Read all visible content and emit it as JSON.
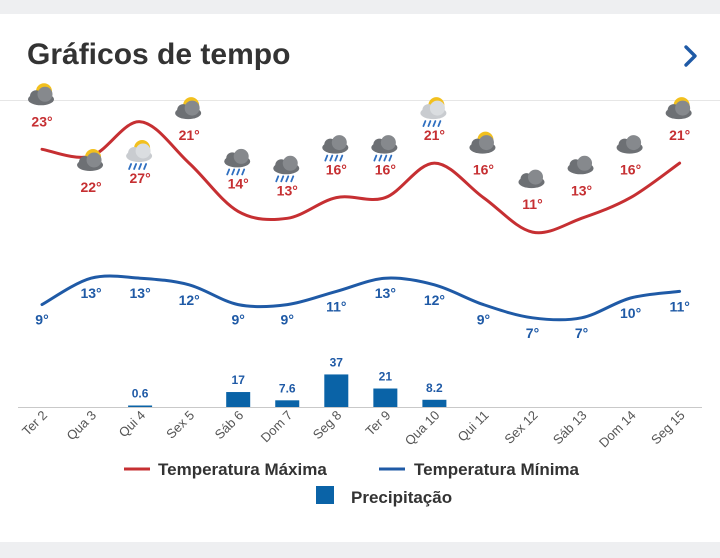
{
  "header": {
    "title": "Gráficos de tempo",
    "chevron_icon": "chevron-right-icon"
  },
  "colors": {
    "max": "#c62f32",
    "min": "#1f5aa6",
    "precip": "#0a63a7",
    "title": "#333333"
  },
  "chart_data": {
    "type": "line",
    "categories": [
      "Ter 2",
      "Qua 3",
      "Qui 4",
      "Sex 5",
      "Sáb 6",
      "Dom 7",
      "Seg 8",
      "Ter 9",
      "Qua 10",
      "Qui 11",
      "Sex 12",
      "Sáb 13",
      "Dom 14",
      "Seg 15"
    ],
    "icons": [
      "partly-cloudy-icon",
      "partly-cloudy-icon",
      "sun-cloud-rain-icon",
      "partly-cloudy-icon",
      "rain-cloud-icon",
      "rain-cloud-icon",
      "rain-cloud-icon",
      "rain-cloud-icon",
      "sun-cloud-rain-icon",
      "partly-cloudy-icon",
      "cloud-icon",
      "cloud-icon",
      "cloud-icon",
      "partly-cloudy-icon"
    ],
    "series": [
      {
        "name": "Temperatura Máxima",
        "values": [
          23,
          22,
          27,
          21,
          14,
          13,
          16,
          16,
          21,
          16,
          11,
          13,
          16,
          21
        ],
        "labels": [
          "23°",
          "22°",
          "27°",
          "21°",
          "14°",
          "13°",
          "16°",
          "16°",
          "21°",
          "16°",
          "11°",
          "13°",
          "16°",
          "21°"
        ]
      },
      {
        "name": "Temperatura Mínima",
        "values": [
          9,
          13,
          13,
          12,
          9,
          9,
          11,
          13,
          12,
          9,
          7,
          7,
          10,
          11
        ],
        "labels": [
          "9°",
          "13°",
          "13°",
          "12°",
          "9°",
          "9°",
          "11°",
          "13°",
          "12°",
          "9°",
          "7°",
          "7°",
          "10°",
          "11°"
        ]
      }
    ],
    "precipitation": {
      "name": "Precipitação",
      "values": [
        0,
        0,
        0.6,
        0,
        17,
        7.6,
        37,
        21,
        8.2,
        0,
        0,
        0,
        0,
        0
      ],
      "labels": [
        "",
        "",
        "0.6",
        "",
        "17",
        "7.6",
        "37",
        "21",
        "8.2",
        "",
        "",
        "",
        "",
        ""
      ]
    },
    "legend": {
      "max": "Temperatura Máxima",
      "min": "Temperatura Mínima",
      "precip": "Precipitação"
    }
  }
}
